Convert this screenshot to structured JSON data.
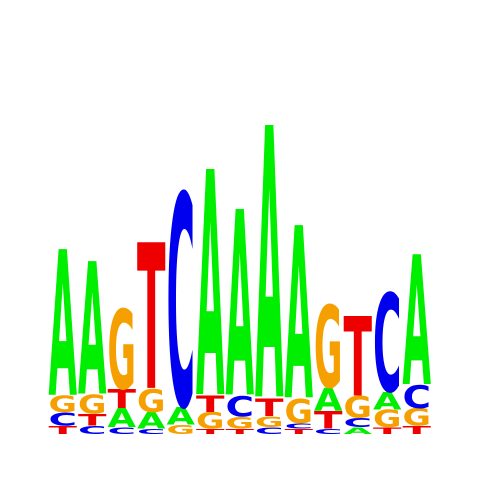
{
  "logo": {
    "colors": {
      "A": "#00ee00",
      "C": "#0000ee",
      "G": "#f5a000",
      "T": "#ee0000"
    },
    "columns": [
      [
        {
          "b": "T",
          "h": 0.06
        },
        {
          "b": "C",
          "h": 0.1
        },
        {
          "b": "G",
          "h": 0.12
        },
        {
          "b": "A",
          "h": 1.1
        }
      ],
      [
        {
          "b": "C",
          "h": 0.06
        },
        {
          "b": "T",
          "h": 0.09
        },
        {
          "b": "G",
          "h": 0.14
        },
        {
          "b": "A",
          "h": 1.0
        }
      ],
      [
        {
          "b": "C",
          "h": 0.05
        },
        {
          "b": "A",
          "h": 0.14
        },
        {
          "b": "T",
          "h": 0.14
        },
        {
          "b": "G",
          "h": 0.6
        }
      ],
      [
        {
          "b": "C",
          "h": 0.04
        },
        {
          "b": "A",
          "h": 0.12
        },
        {
          "b": "G",
          "h": 0.17
        },
        {
          "b": "T",
          "h": 1.1
        }
      ],
      [
        {
          "b": "G",
          "h": 0.07
        },
        {
          "b": "A",
          "h": 0.13
        },
        {
          "b": "C",
          "h": 1.6
        }
      ],
      [
        {
          "b": "T",
          "h": 0.04
        },
        {
          "b": "G",
          "h": 0.12
        },
        {
          "b": "T",
          "h": 0.12
        },
        {
          "b": "A",
          "h": 1.7
        }
      ],
      [
        {
          "b": "T",
          "h": 0.04
        },
        {
          "b": "G",
          "h": 0.09
        },
        {
          "b": "C",
          "h": 0.15
        },
        {
          "b": "A",
          "h": 1.4
        }
      ],
      [
        {
          "b": "C",
          "h": 0.05
        },
        {
          "b": "G",
          "h": 0.08
        },
        {
          "b": "T",
          "h": 0.13
        },
        {
          "b": "A",
          "h": 2.05
        }
      ],
      [
        {
          "b": "T",
          "h": 0.04
        },
        {
          "b": "C",
          "h": 0.04
        },
        {
          "b": "G",
          "h": 0.18
        },
        {
          "b": "A",
          "h": 1.3
        }
      ],
      [
        {
          "b": "C",
          "h": 0.04
        },
        {
          "b": "T",
          "h": 0.13
        },
        {
          "b": "A",
          "h": 0.17
        },
        {
          "b": "G",
          "h": 0.62
        }
      ],
      [
        {
          "b": "A",
          "h": 0.05
        },
        {
          "b": "C",
          "h": 0.07
        },
        {
          "b": "G",
          "h": 0.16
        },
        {
          "b": "T",
          "h": 0.6
        }
      ],
      [
        {
          "b": "T",
          "h": 0.05
        },
        {
          "b": "G",
          "h": 0.13
        },
        {
          "b": "A",
          "h": 0.13
        },
        {
          "b": "C",
          "h": 0.74
        }
      ],
      [
        {
          "b": "T",
          "h": 0.06
        },
        {
          "b": "G",
          "h": 0.13
        },
        {
          "b": "C",
          "h": 0.17
        },
        {
          "b": "A",
          "h": 0.98
        }
      ]
    ]
  }
}
